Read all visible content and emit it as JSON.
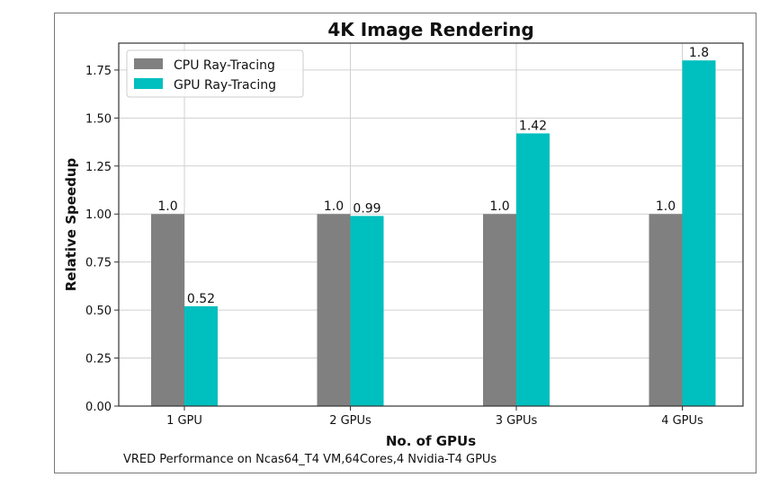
{
  "chart_data": {
    "type": "bar",
    "title": "4K Image Rendering",
    "xlabel": "No. of GPUs",
    "ylabel": "Relative Speedup",
    "caption": "VRED Performance on Ncas64_T4 VM,64Cores,4 Nvidia-T4 GPUs",
    "categories": [
      "1 GPU",
      "2 GPUs",
      "3 GPUs",
      "4 GPUs"
    ],
    "series": [
      {
        "name": "CPU Ray-Tracing",
        "color": "#808080",
        "values": [
          1.0,
          1.0,
          1.0,
          1.0
        ],
        "labels": [
          "1.0",
          "1.0",
          "1.0",
          "1.0"
        ]
      },
      {
        "name": "GPU Ray-Tracing",
        "color": "#00bfbf",
        "values": [
          0.52,
          0.99,
          1.42,
          1.8
        ],
        "labels": [
          "0.52",
          "0.99",
          "1.42",
          "1.8"
        ]
      }
    ],
    "yticks": [
      "0.00",
      "0.25",
      "0.50",
      "0.75",
      "1.00",
      "1.25",
      "1.50",
      "1.75"
    ],
    "ylim": [
      0,
      1.89
    ],
    "grid": true,
    "legend": "top-left"
  }
}
